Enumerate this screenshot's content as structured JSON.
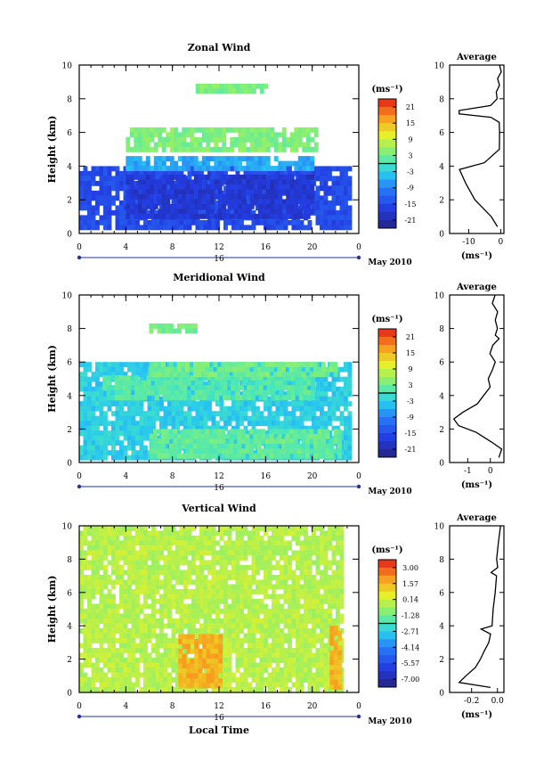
{
  "figure": {
    "month_label": "May 2010",
    "xlabel": "Local Time",
    "ylabel": "Height (km)",
    "unit_label": "(ms⁻¹)",
    "avg_title": "Average"
  },
  "chart_data": [
    {
      "type": "heatmap",
      "title": "Zonal Wind",
      "xlabel": "",
      "ylabel": "Height (km)",
      "x_ticks": [
        "0",
        "4",
        "8",
        "12",
        "16",
        "20",
        "0"
      ],
      "day_label": "16",
      "y_ticks": [
        "0",
        "2",
        "4",
        "6",
        "8",
        "10"
      ],
      "xlim": [
        0,
        24
      ],
      "ylim": [
        0,
        10
      ],
      "colorbar": {
        "label": "(ms⁻¹)",
        "ticks": [
          "21",
          "15",
          "9",
          "3",
          "-3",
          "-9",
          "-15",
          "-21"
        ],
        "range": [
          -24,
          24
        ]
      },
      "regions": [
        {
          "x": [
            0,
            23.2
          ],
          "y": [
            0.3,
            4.0
          ],
          "value": -15
        },
        {
          "x": [
            4,
            20
          ],
          "y": [
            1.0,
            3.5
          ],
          "value": -18
        },
        {
          "x": [
            4,
            20
          ],
          "y": [
            4.0,
            4.6
          ],
          "value": -6
        },
        {
          "x": [
            4,
            20.5
          ],
          "y": [
            5.0,
            6.3
          ],
          "value": 4
        },
        {
          "x": [
            10,
            16
          ],
          "y": [
            8.6,
            8.9
          ],
          "value": 4
        }
      ],
      "average": {
        "title": "Average",
        "xlabel": "(ms⁻¹)",
        "x_ticks": [
          "-10",
          "0"
        ],
        "xlim": [
          -16,
          1
        ],
        "heights": [
          0.4,
          1.0,
          2.0,
          3.0,
          3.8,
          4.2,
          5.0,
          6.0,
          6.6,
          6.9,
          7.1,
          7.3,
          7.6,
          8.0,
          8.4,
          8.8,
          9.2,
          9.6,
          10.0
        ],
        "values": [
          -1,
          -3,
          -8,
          -11,
          -13,
          -5,
          -0.4,
          -0.3,
          -0.3,
          -3,
          -13,
          -13,
          -3,
          -1,
          -1.5,
          -0.5,
          -0.8,
          0,
          -0.2
        ]
      }
    },
    {
      "type": "heatmap",
      "title": "Meridional Wind",
      "xlabel": "",
      "ylabel": "Height (km)",
      "x_ticks": [
        "0",
        "4",
        "8",
        "12",
        "16",
        "20",
        "0"
      ],
      "day_label": "16",
      "y_ticks": [
        "0",
        "2",
        "4",
        "6",
        "8",
        "10"
      ],
      "xlim": [
        0,
        24
      ],
      "ylim": [
        0,
        10
      ],
      "colorbar": {
        "label": "(ms⁻¹)",
        "ticks": [
          "21",
          "15",
          "9",
          "3",
          "-3",
          "-9",
          "-15",
          "-21"
        ],
        "range": [
          -24,
          24
        ]
      },
      "regions": [
        {
          "x": [
            0,
            23.2
          ],
          "y": [
            0.3,
            6.0
          ],
          "value": -3
        },
        {
          "x": [
            6,
            22.5
          ],
          "y": [
            0.5,
            2.0
          ],
          "value": 2
        },
        {
          "x": [
            2,
            20
          ],
          "y": [
            4.0,
            5.2
          ],
          "value": 1
        },
        {
          "x": [
            6,
            22
          ],
          "y": [
            5.2,
            6.0
          ],
          "value": 3
        },
        {
          "x": [
            6,
            10
          ],
          "y": [
            8.0,
            8.3
          ],
          "value": 3
        }
      ],
      "average": {
        "title": "Average",
        "xlabel": "(ms⁻¹)",
        "x_ticks": [
          "-1",
          "0"
        ],
        "xlim": [
          -1.8,
          0.6
        ],
        "heights": [
          0.3,
          0.8,
          1.2,
          1.8,
          2.2,
          2.6,
          3.0,
          3.5,
          4.0,
          4.5,
          5.0,
          5.5,
          6.0,
          6.5,
          7.0,
          7.4,
          7.6,
          8.0,
          8.5,
          9.0,
          9.5,
          10.0
        ],
        "values": [
          0.4,
          0.5,
          0.1,
          -0.6,
          -1.4,
          -1.6,
          -1.2,
          -0.6,
          -0.3,
          0.0,
          -0.1,
          0.1,
          0.2,
          0.0,
          0.1,
          0.4,
          0.2,
          0.3,
          0.2,
          0.3,
          0.1,
          0.2
        ]
      }
    },
    {
      "type": "heatmap",
      "title": "Vertical Wind",
      "xlabel": "Local Time",
      "ylabel": "Height (km)",
      "x_ticks": [
        "0",
        "4",
        "8",
        "12",
        "16",
        "20",
        "0"
      ],
      "day_label": "16",
      "y_ticks": [
        "0",
        "2",
        "4",
        "6",
        "8",
        "10"
      ],
      "xlim": [
        0,
        24
      ],
      "ylim": [
        0,
        10
      ],
      "colorbar": {
        "label": "(ms⁻¹)",
        "ticks": [
          "3.00",
          "1.57",
          "0.14",
          "-1.28",
          "-2.71",
          "-4.14",
          "-5.57",
          "-7.00"
        ],
        "range": [
          -7.7,
          3.7
        ]
      },
      "regions": [
        {
          "x": [
            0,
            22.5
          ],
          "y": [
            0.3,
            6.5
          ],
          "value": -0.2
        },
        {
          "x": [
            0,
            22.5
          ],
          "y": [
            6.5,
            10.0
          ],
          "value": -0.2
        },
        {
          "x": [
            8.5,
            12
          ],
          "y": [
            0.4,
            3.5
          ],
          "value": 1.6
        },
        {
          "x": [
            21.5,
            22.5
          ],
          "y": [
            0.4,
            4.0
          ],
          "value": 1.6
        }
      ],
      "average": {
        "title": "Average",
        "xlabel": "(ms⁻¹)",
        "x_ticks": [
          "-0.2",
          "0.0"
        ],
        "xlim": [
          -0.37,
          0.05
        ],
        "heights": [
          0.3,
          0.6,
          1.0,
          1.5,
          2.0,
          2.5,
          3.0,
          3.5,
          3.8,
          4.0,
          5.0,
          6.0,
          7.0,
          7.2,
          7.5,
          8.0,
          9.0,
          10.0
        ],
        "values": [
          -0.05,
          -0.3,
          -0.24,
          -0.17,
          -0.13,
          -0.1,
          -0.07,
          -0.05,
          -0.13,
          -0.04,
          -0.03,
          -0.02,
          -0.01,
          -0.05,
          0.0,
          -0.01,
          0.01,
          0.02
        ]
      }
    }
  ]
}
